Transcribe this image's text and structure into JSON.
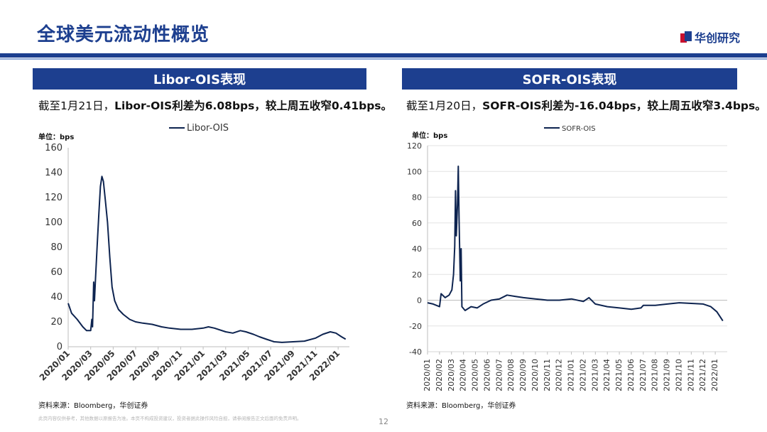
{
  "page": {
    "title": "全球美元流动性概览",
    "brand": "华创研究",
    "page_number": "12",
    "disclaimer": "此页内容仅供参考，其他数据以原报告为准。本页不构成投资建议，投资者据此操作风险自担，请参阅报告正文后面的免责声明。"
  },
  "colors": {
    "brand_blue": "#1d3f8f",
    "brand_red": "#c8102e",
    "line": "#0e2450"
  },
  "left_panel": {
    "header": "Libor-OIS表现",
    "subtitle_prefix": "截至1月21日，",
    "subtitle_bold": "Libor-OIS利差为6.08bps，较上周五收窄0.41bps。",
    "unit_label": "单位：bps",
    "source": "资料来源：Bloomberg，华创证券"
  },
  "right_panel": {
    "header": "SOFR-OIS表现",
    "subtitle_prefix": "截至1月20日，",
    "subtitle_bold": "SOFR-OIS利差为-16.04bps，较上周五收窄3.4bps。",
    "unit_label": "单位：bps",
    "source": "资料来源：Bloomberg，华创证券"
  },
  "chart_data": [
    {
      "type": "line",
      "legend": [
        "Libor-OIS"
      ],
      "legend_position": "top",
      "ylabel": "单位：bps",
      "ylim": [
        0,
        160
      ],
      "yticks": [
        0,
        20,
        40,
        60,
        80,
        100,
        120,
        140,
        160
      ],
      "xlim": [
        "2020-01",
        "2022-02"
      ],
      "xticks": [
        "2020/01",
        "2020/03",
        "2020/05",
        "2020/07",
        "2020/09",
        "2020/11",
        "2021/01",
        "2021/03",
        "2021/05",
        "2021/07",
        "2021/09",
        "2021/11",
        "2022/01"
      ],
      "grid": false,
      "series": [
        {
          "name": "Libor-OIS",
          "points": [
            [
              "2020-01-01",
              35
            ],
            [
              "2020-01-10",
              27
            ],
            [
              "2020-01-25",
              22
            ],
            [
              "2020-02-10",
              16
            ],
            [
              "2020-02-20",
              13
            ],
            [
              "2020-03-01",
              13
            ],
            [
              "2020-03-04",
              22
            ],
            [
              "2020-03-06",
              16
            ],
            [
              "2020-03-09",
              52
            ],
            [
              "2020-03-11",
              37
            ],
            [
              "2020-03-14",
              55
            ],
            [
              "2020-03-18",
              80
            ],
            [
              "2020-03-23",
              108
            ],
            [
              "2020-03-27",
              129
            ],
            [
              "2020-04-01",
              137
            ],
            [
              "2020-04-05",
              133
            ],
            [
              "2020-04-10",
              118
            ],
            [
              "2020-04-16",
              100
            ],
            [
              "2020-04-22",
              72
            ],
            [
              "2020-04-28",
              48
            ],
            [
              "2020-05-05",
              37
            ],
            [
              "2020-05-15",
              30
            ],
            [
              "2020-05-28",
              26
            ],
            [
              "2020-06-15",
              22
            ],
            [
              "2020-07-01",
              20
            ],
            [
              "2020-07-20",
              19
            ],
            [
              "2020-08-15",
              18
            ],
            [
              "2020-09-10",
              16
            ],
            [
              "2020-10-01",
              15
            ],
            [
              "2020-11-01",
              14
            ],
            [
              "2020-12-01",
              14
            ],
            [
              "2021-01-01",
              15
            ],
            [
              "2021-01-15",
              16
            ],
            [
              "2021-02-01",
              15
            ],
            [
              "2021-03-01",
              12
            ],
            [
              "2021-03-20",
              11
            ],
            [
              "2021-04-10",
              13
            ],
            [
              "2021-04-25",
              12
            ],
            [
              "2021-05-15",
              10
            ],
            [
              "2021-06-01",
              8
            ],
            [
              "2021-06-20",
              6
            ],
            [
              "2021-07-10",
              4
            ],
            [
              "2021-08-01",
              3.5
            ],
            [
              "2021-09-01",
              4
            ],
            [
              "2021-10-01",
              4.5
            ],
            [
              "2021-11-01",
              7
            ],
            [
              "2021-11-20",
              10
            ],
            [
              "2021-12-10",
              12
            ],
            [
              "2021-12-25",
              11
            ],
            [
              "2022-01-10",
              8
            ],
            [
              "2022-01-21",
              6.08
            ]
          ]
        }
      ]
    },
    {
      "type": "line",
      "legend": [
        "SOFR-OIS"
      ],
      "legend_position": "top",
      "ylabel": "单位：bps",
      "ylim": [
        -40,
        120
      ],
      "yticks": [
        -40,
        -20,
        0,
        20,
        40,
        60,
        80,
        100,
        120
      ],
      "xlim": [
        "2020-01",
        "2022-02"
      ],
      "xticks": [
        "2020/01",
        "2020/02",
        "2020/03",
        "2020/04",
        "2020/05",
        "2020/06",
        "2020/07",
        "2020/08",
        "2020/09",
        "2020/10",
        "2020/11",
        "2020/12",
        "2021/01",
        "2021/02",
        "2021/03",
        "2021/04",
        "2021/05",
        "2021/06",
        "2021/07",
        "2021/08",
        "2021/09",
        "2021/10",
        "2021/11",
        "2021/12",
        "2022/01"
      ],
      "grid": true,
      "series": [
        {
          "name": "SOFR-OIS",
          "points": [
            [
              "2020-01-01",
              -2
            ],
            [
              "2020-01-15",
              -3
            ],
            [
              "2020-02-01",
              -5
            ],
            [
              "2020-02-05",
              5
            ],
            [
              "2020-02-15",
              2
            ],
            [
              "2020-02-25",
              4
            ],
            [
              "2020-03-02",
              8
            ],
            [
              "2020-03-06",
              20
            ],
            [
              "2020-03-09",
              42
            ],
            [
              "2020-03-11",
              85
            ],
            [
              "2020-03-13",
              50
            ],
            [
              "2020-03-16",
              75
            ],
            [
              "2020-03-18",
              104
            ],
            [
              "2020-03-20",
              60
            ],
            [
              "2020-03-23",
              15
            ],
            [
              "2020-03-25",
              40
            ],
            [
              "2020-03-27",
              -5
            ],
            [
              "2020-04-05",
              -8
            ],
            [
              "2020-04-20",
              -5
            ],
            [
              "2020-05-05",
              -6
            ],
            [
              "2020-05-20",
              -3
            ],
            [
              "2020-06-10",
              0
            ],
            [
              "2020-07-01",
              1
            ],
            [
              "2020-07-20",
              4
            ],
            [
              "2020-08-10",
              3
            ],
            [
              "2020-09-01",
              2
            ],
            [
              "2020-10-01",
              1
            ],
            [
              "2020-11-01",
              0
            ],
            [
              "2020-12-01",
              0
            ],
            [
              "2021-01-01",
              1
            ],
            [
              "2021-02-01",
              -1
            ],
            [
              "2021-02-15",
              2
            ],
            [
              "2021-03-01",
              -3
            ],
            [
              "2021-04-01",
              -5
            ],
            [
              "2021-05-01",
              -6
            ],
            [
              "2021-06-01",
              -7
            ],
            [
              "2021-06-25",
              -6
            ],
            [
              "2021-07-01",
              -4
            ],
            [
              "2021-08-01",
              -4
            ],
            [
              "2021-09-01",
              -3
            ],
            [
              "2021-10-01",
              -2
            ],
            [
              "2021-11-01",
              -2.5
            ],
            [
              "2021-12-01",
              -3
            ],
            [
              "2021-12-20",
              -5
            ],
            [
              "2022-01-05",
              -9
            ],
            [
              "2022-01-20",
              -16.04
            ]
          ]
        }
      ]
    }
  ]
}
